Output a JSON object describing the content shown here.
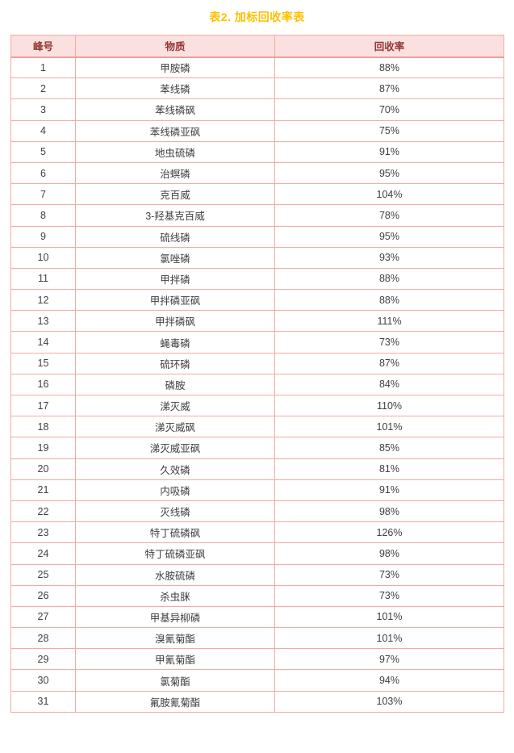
{
  "page": {
    "title": "表2. 加标回收率表"
  },
  "colors": {
    "title_color": "#FFC000",
    "header_bg": "#FAE1DF",
    "header_text": "#953735",
    "body_text": "#404040",
    "border": "#F2ABA3",
    "border_strong": "#EC9F97",
    "background": "#FFFFFF"
  },
  "table": {
    "headers": [
      "峰号",
      "物质",
      "回收率"
    ],
    "rows": [
      [
        "1",
        "甲胺磷",
        "88%"
      ],
      [
        "2",
        "苯线磷",
        "87%"
      ],
      [
        "3",
        "苯线磷砜",
        "70%"
      ],
      [
        "4",
        "苯线磷亚砜",
        "75%"
      ],
      [
        "5",
        "地虫硫磷",
        "91%"
      ],
      [
        "6",
        "治螟磷",
        "95%"
      ],
      [
        "7",
        "克百威",
        "104%"
      ],
      [
        "8",
        "3-羟基克百威",
        "78%"
      ],
      [
        "9",
        "硫线磷",
        "95%"
      ],
      [
        "10",
        "氯唑磷",
        "93%"
      ],
      [
        "11",
        "甲拌磷",
        "88%"
      ],
      [
        "12",
        "甲拌磷亚砜",
        "88%"
      ],
      [
        "13",
        "甲拌磷砜",
        "111%"
      ],
      [
        "14",
        "蝇毒磷",
        "73%"
      ],
      [
        "15",
        "硫环磷",
        "87%"
      ],
      [
        "16",
        "磷胺",
        "84%"
      ],
      [
        "17",
        "涕灭威",
        "110%"
      ],
      [
        "18",
        "涕灭威砜",
        "101%"
      ],
      [
        "19",
        "涕灭威亚砜",
        "85%"
      ],
      [
        "20",
        "久效磷",
        "81%"
      ],
      [
        "21",
        "内吸磷",
        "91%"
      ],
      [
        "22",
        "灭线磷",
        "98%"
      ],
      [
        "23",
        "特丁硫磷砜",
        "126%"
      ],
      [
        "24",
        "特丁硫磷亚砜",
        "98%"
      ],
      [
        "25",
        "水胺硫磷",
        "73%"
      ],
      [
        "26",
        "杀虫脒",
        "73%"
      ],
      [
        "27",
        "甲基异柳磷",
        "101%"
      ],
      [
        "28",
        "溴氰菊酯",
        "101%"
      ],
      [
        "29",
        "甲氰菊酯",
        "97%"
      ],
      [
        "30",
        "氯菊酯",
        "94%"
      ],
      [
        "31",
        "氟胺氰菊酯",
        "103%"
      ]
    ]
  }
}
